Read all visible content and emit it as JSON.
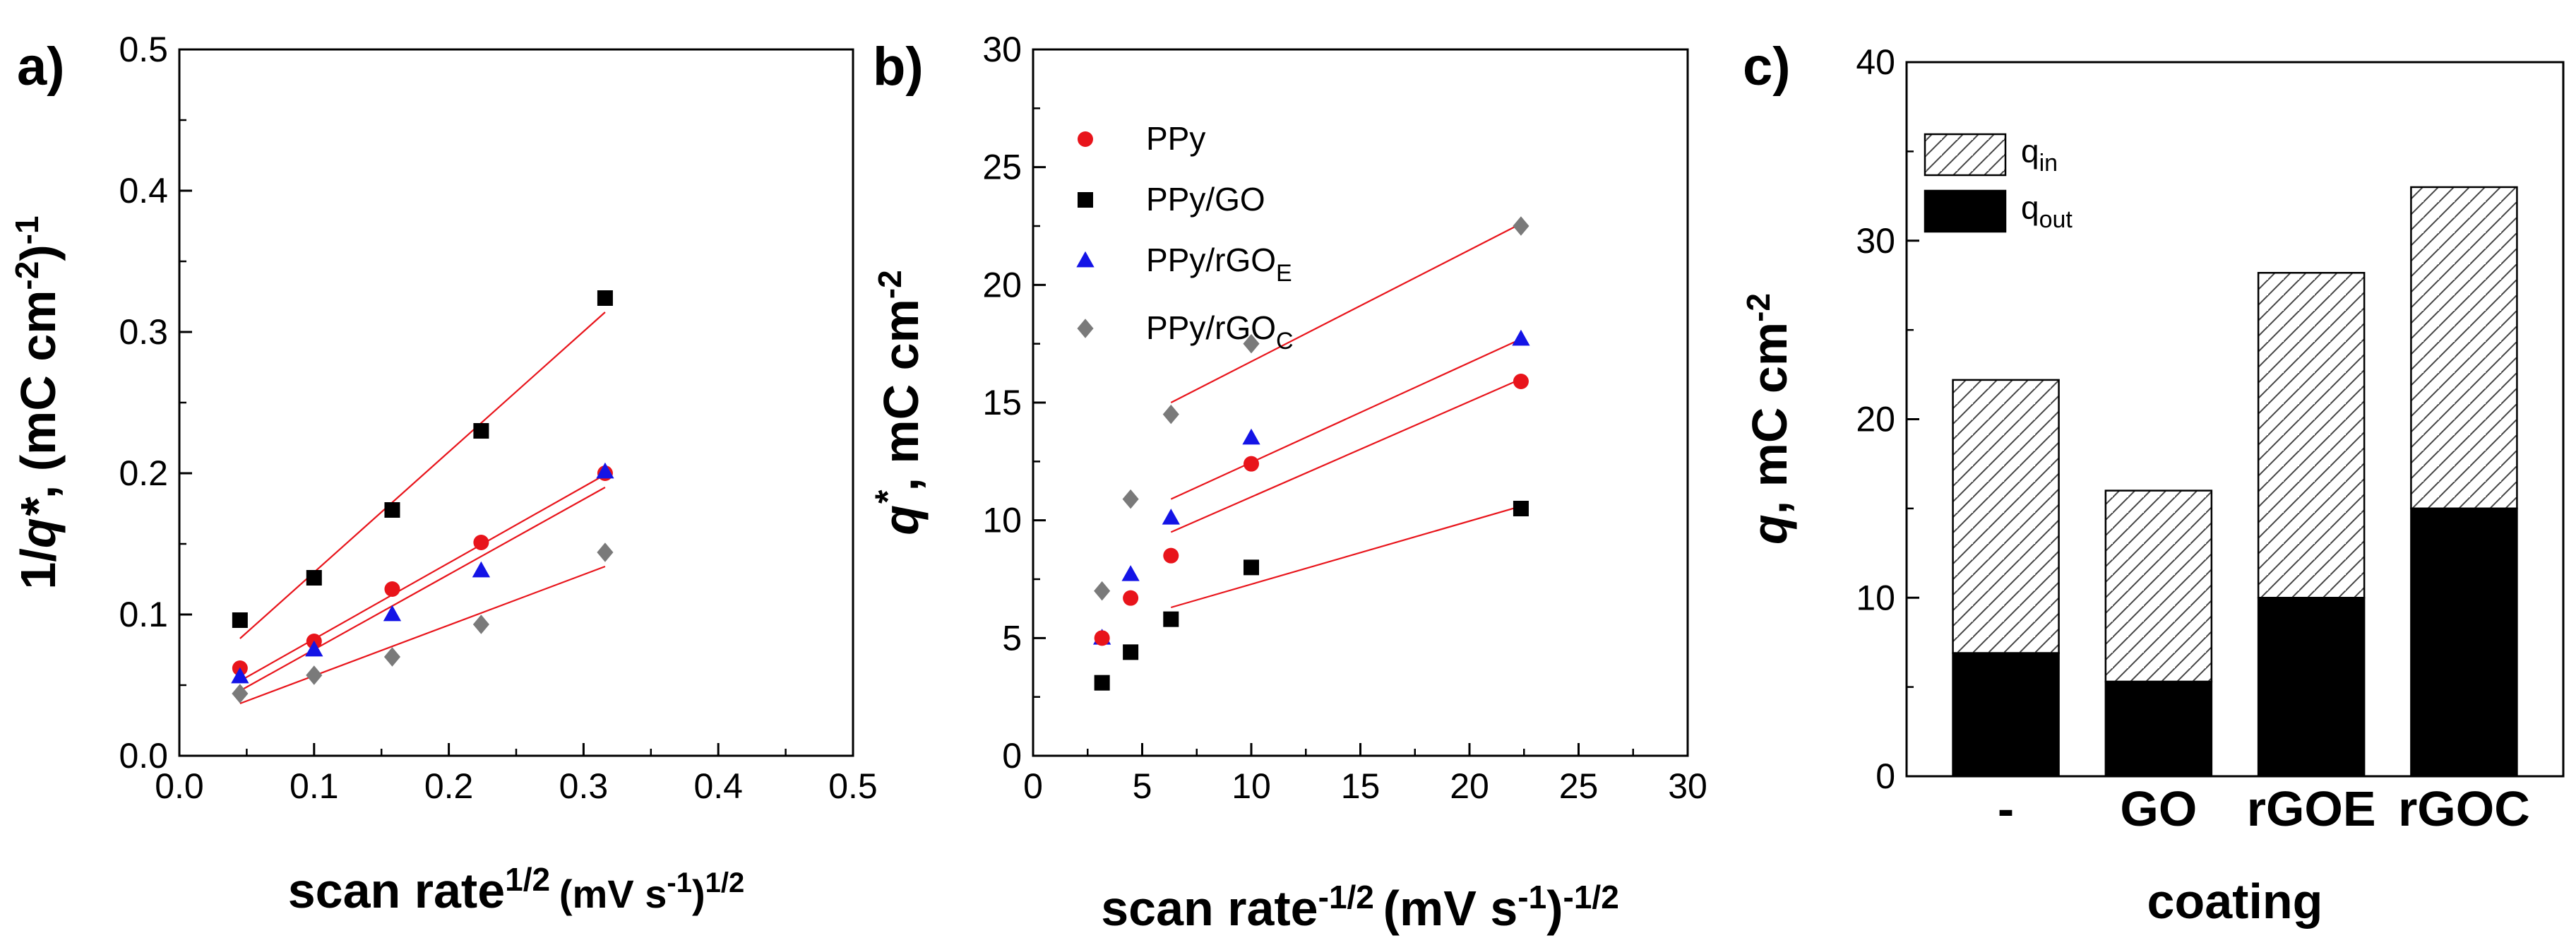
{
  "chart_data": [
    {
      "panel": "a)",
      "type": "scatter",
      "xlabel": "scan rate",
      "xlabel_sup": "1/2",
      "xlabel_unit": "(mV s",
      "xlabel_unit_sup": "-1",
      "xlabel_unit_tail": ")",
      "xlabel_unit_tail_sup": "1/2",
      "ylabel_pre": "1/",
      "ylabel_q": "q*",
      "ylabel_mid": ", (mC cm",
      "ylabel_sup": "-2",
      "ylabel_post": ")",
      "ylabel_post_sup": "-1",
      "xlim": [
        0.0,
        0.5
      ],
      "ylim": [
        0.0,
        0.5
      ],
      "xticks": [
        "0.0",
        "0.1",
        "0.2",
        "0.3",
        "0.4",
        "0.5"
      ],
      "yticks": [
        "0.0",
        "0.1",
        "0.2",
        "0.3",
        "0.4",
        "0.5"
      ],
      "series": [
        {
          "name": "PPy/GO",
          "marker": "square",
          "color": "#000000",
          "x": [
            0.045,
            0.1,
            0.158,
            0.224,
            0.316
          ],
          "y": [
            0.096,
            0.126,
            0.174,
            0.23,
            0.324
          ],
          "fit": [
            [
              0.045,
              0.083
            ],
            [
              0.316,
              0.314
            ]
          ]
        },
        {
          "name": "PPy",
          "marker": "circle",
          "color": "#e8141b",
          "x": [
            0.045,
            0.1,
            0.158,
            0.224,
            0.316
          ],
          "y": [
            0.062,
            0.081,
            0.118,
            0.151,
            0.2
          ],
          "fit": [
            [
              0.045,
              0.053
            ],
            [
              0.316,
              0.199
            ]
          ]
        },
        {
          "name": "PPy/rGOE",
          "marker": "triangle",
          "color": "#1414e6",
          "x": [
            0.045,
            0.1,
            0.158,
            0.224,
            0.316
          ],
          "y": [
            0.056,
            0.075,
            0.1,
            0.131,
            0.201
          ],
          "fit": [
            [
              0.045,
              0.046
            ],
            [
              0.316,
              0.19
            ]
          ]
        },
        {
          "name": "PPy/rGOC",
          "marker": "diamond",
          "color": "#7a7a7a",
          "x": [
            0.045,
            0.1,
            0.158,
            0.224,
            0.316
          ],
          "y": [
            0.044,
            0.057,
            0.07,
            0.093,
            0.144
          ],
          "fit": [
            [
              0.045,
              0.037
            ],
            [
              0.316,
              0.134
            ]
          ]
        }
      ]
    },
    {
      "panel": "b)",
      "type": "scatter",
      "xlabel": "scan rate",
      "xlabel_sup": "-1/2",
      "xlabel_unit": "(mV s",
      "xlabel_unit_sup": "-1",
      "xlabel_unit_tail": ")",
      "xlabel_unit_tail_sup": "-1/2",
      "ylabel_q": "q",
      "ylabel_qsup": "*",
      "ylabel_mid": ", mC cm",
      "ylabel_sup": "-2",
      "xlim": [
        0,
        30
      ],
      "ylim": [
        0,
        30
      ],
      "xticks": [
        "0",
        "5",
        "10",
        "15",
        "20",
        "25",
        "30"
      ],
      "yticks": [
        "0",
        "5",
        "10",
        "15",
        "20",
        "25",
        "30"
      ],
      "legend": [
        {
          "label": "PPy",
          "sub": "",
          "marker": "circle",
          "color": "#e8141b"
        },
        {
          "label": "PPy/GO",
          "sub": "",
          "marker": "square",
          "color": "#000000"
        },
        {
          "label": "PPy/rGO",
          "sub": "E",
          "marker": "triangle",
          "color": "#1414e6"
        },
        {
          "label": "PPy/rGO",
          "sub": "C",
          "marker": "diamond",
          "color": "#7a7a7a"
        }
      ],
      "series": [
        {
          "name": "PPy/rGOC",
          "marker": "diamond",
          "color": "#7a7a7a",
          "x": [
            3.16,
            4.47,
            6.32,
            10.0,
            22.36
          ],
          "y": [
            7.0,
            10.9,
            14.5,
            17.5,
            22.5
          ],
          "fit": [
            [
              6.32,
              15.0
            ],
            [
              22.36,
              22.6
            ]
          ]
        },
        {
          "name": "PPy/rGOE",
          "marker": "triangle",
          "color": "#1414e6",
          "x": [
            3.16,
            4.47,
            6.32,
            10.0,
            22.36
          ],
          "y": [
            5.0,
            7.7,
            10.1,
            13.5,
            17.7
          ],
          "fit": [
            [
              6.32,
              10.9
            ],
            [
              22.36,
              17.7
            ]
          ]
        },
        {
          "name": "PPy",
          "marker": "circle",
          "color": "#e8141b",
          "x": [
            3.16,
            4.47,
            6.32,
            10.0,
            22.36
          ],
          "y": [
            5.0,
            6.7,
            8.5,
            12.4,
            15.9
          ],
          "fit": [
            [
              6.32,
              9.5
            ],
            [
              22.36,
              16.0
            ]
          ]
        },
        {
          "name": "PPy/GO",
          "marker": "square",
          "color": "#000000",
          "x": [
            3.16,
            4.47,
            6.32,
            10.0,
            22.36
          ],
          "y": [
            3.1,
            4.4,
            5.8,
            8.0,
            10.5
          ],
          "fit": [
            [
              6.32,
              6.3
            ],
            [
              22.36,
              10.6
            ]
          ]
        }
      ]
    },
    {
      "panel": "c)",
      "type": "bar",
      "stacked": true,
      "xlabel": "coating",
      "ylabel_q": "q",
      "ylabel_mid": ", mC cm",
      "ylabel_sup": "-2",
      "ylim": [
        0,
        40
      ],
      "yticks": [
        "0",
        "10",
        "20",
        "30",
        "40"
      ],
      "categories": [
        "-",
        "GO",
        "rGOE",
        "rGOC"
      ],
      "legend": [
        {
          "label": "q",
          "sub": "in",
          "fill": "hatched"
        },
        {
          "label": "q",
          "sub": "out",
          "fill": "#000000"
        }
      ],
      "series": [
        {
          "name": "q_out",
          "values": [
            6.9,
            5.3,
            10.0,
            15.0
          ]
        },
        {
          "name": "q_in",
          "values": [
            15.3,
            10.7,
            18.2,
            18.0
          ]
        }
      ],
      "totals": [
        22.2,
        16.0,
        28.2,
        33.0
      ]
    }
  ]
}
